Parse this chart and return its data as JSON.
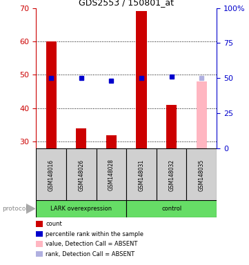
{
  "title": "GDS2553 / 150801_at",
  "samples": [
    "GSM148016",
    "GSM148026",
    "GSM148028",
    "GSM148031",
    "GSM148032",
    "GSM148035"
  ],
  "bar_values": [
    60,
    34,
    32,
    69,
    41,
    48
  ],
  "bar_colors": [
    "#cc0000",
    "#cc0000",
    "#cc0000",
    "#cc0000",
    "#cc0000",
    "#ffb6c1"
  ],
  "dot_values": [
    50,
    50,
    48,
    50,
    51,
    50
  ],
  "dot_colors": [
    "#0000cc",
    "#0000cc",
    "#0000cc",
    "#0000cc",
    "#0000cc",
    "#b0b0e0"
  ],
  "ylim_left": [
    28,
    70
  ],
  "ylim_right": [
    0,
    100
  ],
  "left_ticks": [
    30,
    40,
    50,
    60,
    70
  ],
  "right_ticks": [
    0,
    25,
    50,
    75,
    100
  ],
  "right_tick_labels": [
    "0",
    "25",
    "50",
    "75",
    "100%"
  ],
  "left_color": "#cc0000",
  "right_color": "#0000cc",
  "group_green": "#66dd66",
  "gray_box": "#d0d0d0",
  "legend_items": [
    {
      "label": "count",
      "color": "#cc0000"
    },
    {
      "label": "percentile rank within the sample",
      "color": "#0000cc"
    },
    {
      "label": "value, Detection Call = ABSENT",
      "color": "#ffb6c1"
    },
    {
      "label": "rank, Detection Call = ABSENT",
      "color": "#b0b0e0"
    }
  ],
  "bar_width": 0.35,
  "lark_samples": 3,
  "control_samples": 3
}
